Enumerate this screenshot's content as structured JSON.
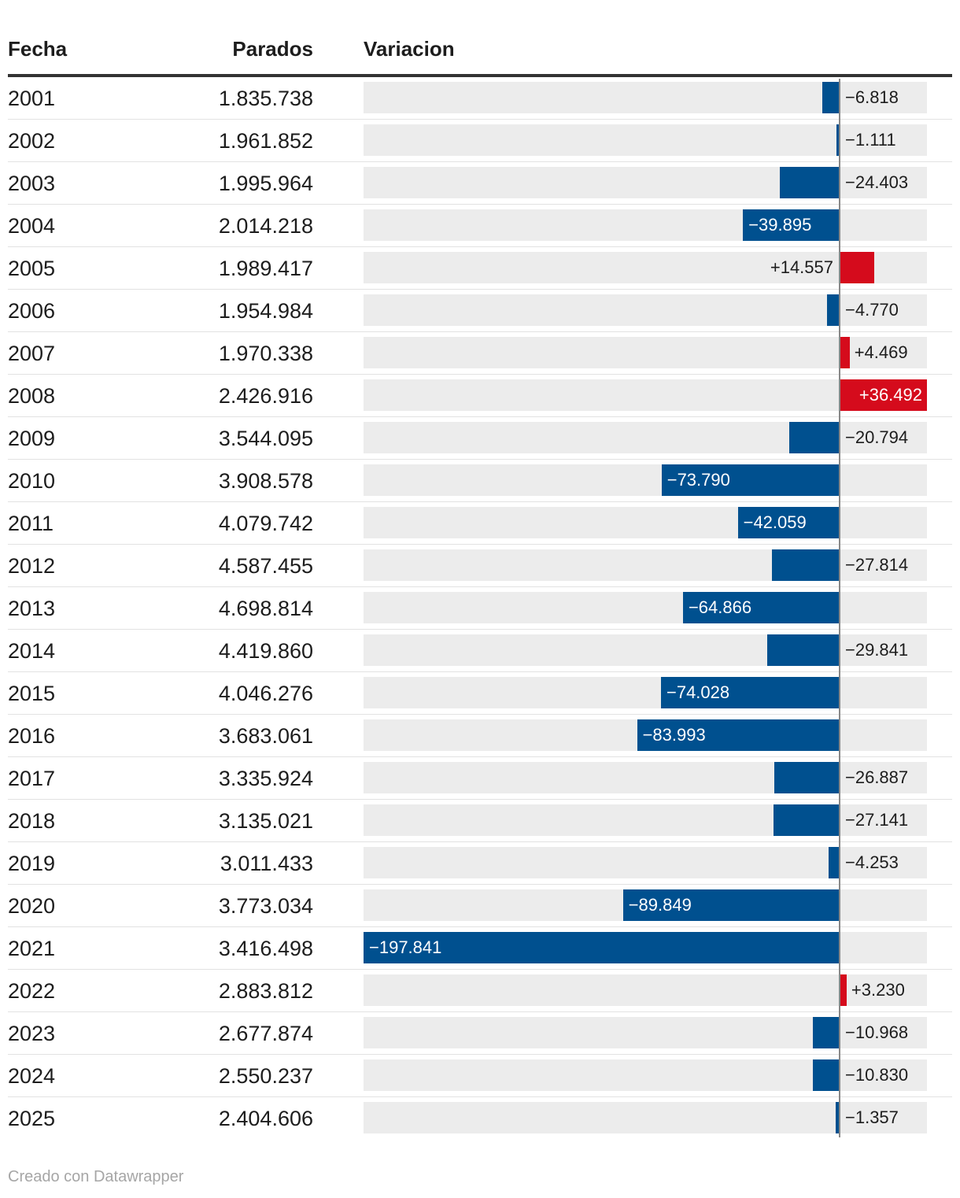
{
  "headers": {
    "fecha": "Fecha",
    "parados": "Parados",
    "variacion": "Variacion"
  },
  "footer": "Creado con Datawrapper",
  "colors": {
    "negative": "#00508f",
    "positive": "#d50b1c",
    "track": "#ececec"
  },
  "chart_data": {
    "type": "table",
    "title": "",
    "columns": [
      "Fecha",
      "Parados",
      "Variacion"
    ],
    "variation_range": [
      -197841,
      36492
    ],
    "rows": [
      {
        "year": "2001",
        "parados": "1.835.738",
        "variacion": -6818,
        "label": "−6.818"
      },
      {
        "year": "2002",
        "parados": "1.961.852",
        "variacion": -1111,
        "label": "−1.111"
      },
      {
        "year": "2003",
        "parados": "1.995.964",
        "variacion": -24403,
        "label": "−24.403"
      },
      {
        "year": "2004",
        "parados": "2.014.218",
        "variacion": -39895,
        "label": "−39.895"
      },
      {
        "year": "2005",
        "parados": "1.989.417",
        "variacion": 14557,
        "label": "+14.557"
      },
      {
        "year": "2006",
        "parados": "1.954.984",
        "variacion": -4770,
        "label": "−4.770"
      },
      {
        "year": "2007",
        "parados": "1.970.338",
        "variacion": 4469,
        "label": "+4.469"
      },
      {
        "year": "2008",
        "parados": "2.426.916",
        "variacion": 36492,
        "label": "+36.492"
      },
      {
        "year": "2009",
        "parados": "3.544.095",
        "variacion": -20794,
        "label": "−20.794"
      },
      {
        "year": "2010",
        "parados": "3.908.578",
        "variacion": -73790,
        "label": "−73.790"
      },
      {
        "year": "2011",
        "parados": "4.079.742",
        "variacion": -42059,
        "label": "−42.059"
      },
      {
        "year": "2012",
        "parados": "4.587.455",
        "variacion": -27814,
        "label": "−27.814"
      },
      {
        "year": "2013",
        "parados": "4.698.814",
        "variacion": -64866,
        "label": "−64.866"
      },
      {
        "year": "2014",
        "parados": "4.419.860",
        "variacion": -29841,
        "label": "−29.841"
      },
      {
        "year": "2015",
        "parados": "4.046.276",
        "variacion": -74028,
        "label": "−74.028"
      },
      {
        "year": "2016",
        "parados": "3.683.061",
        "variacion": -83993,
        "label": "−83.993"
      },
      {
        "year": "2017",
        "parados": "3.335.924",
        "variacion": -26887,
        "label": "−26.887"
      },
      {
        "year": "2018",
        "parados": "3.135.021",
        "variacion": -27141,
        "label": "−27.141"
      },
      {
        "year": "2019",
        "parados": "3.011.433",
        "variacion": -4253,
        "label": "−4.253"
      },
      {
        "year": "2020",
        "parados": "3.773.034",
        "variacion": -89849,
        "label": "−89.849"
      },
      {
        "year": "2021",
        "parados": "3.416.498",
        "variacion": -197841,
        "label": "−197.841"
      },
      {
        "year": "2022",
        "parados": "2.883.812",
        "variacion": 3230,
        "label": "+3.230"
      },
      {
        "year": "2023",
        "parados": "2.677.874",
        "variacion": -10968,
        "label": "−10.968"
      },
      {
        "year": "2024",
        "parados": "2.550.237",
        "variacion": -10830,
        "label": "−10.830"
      },
      {
        "year": "2025",
        "parados": "2.404.606",
        "variacion": -1357,
        "label": "−1.357"
      }
    ]
  }
}
